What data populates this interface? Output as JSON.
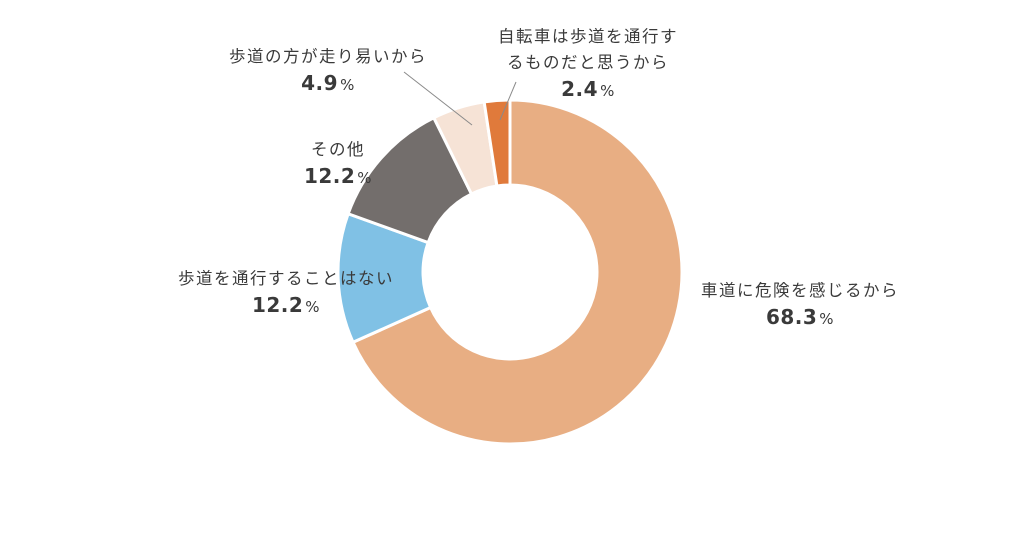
{
  "chart_data": {
    "type": "pie",
    "variant": "donut",
    "unit": "%",
    "slices": [
      {
        "label": "車道に危険を感じるから",
        "value": 68.3,
        "color": "#E8AE83"
      },
      {
        "label": "歩道を通行することはない",
        "value": 12.2,
        "color": "#80C1E5"
      },
      {
        "label": "その他",
        "value": 12.2,
        "color": "#736E6C"
      },
      {
        "label": "歩道の方が走り易いから",
        "value": 4.9,
        "color": "#F6E3D6"
      },
      {
        "label": "自転車は歩道を通行するものだと思うから",
        "label_lines": [
          "自転車は歩道を通行す",
          "るものだと思うから"
        ],
        "value": 2.4,
        "color": "#E07A3B"
      }
    ],
    "direction": "clockwise",
    "start": "top"
  }
}
